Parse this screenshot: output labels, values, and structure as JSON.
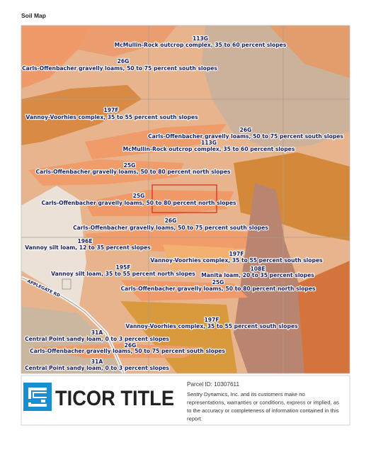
{
  "header": {
    "title": "Soil Map"
  },
  "map": {
    "labels": [
      {
        "code": "113G",
        "name": "McMullin-Rock outcrop complex, 35 to 60 percent slopes"
      },
      {
        "code": "26G",
        "name": "Carls-Offenbacher gravelly loams, 50 to 75 percent south slopes"
      },
      {
        "code": "197F",
        "name": "Vannoy-Voorhies complex, 35 to 55 percent south slopes"
      },
      {
        "code": "26G",
        "name": "Carls-Offenbacher gravelly loams, 50 to 75 percent south slopes"
      },
      {
        "code": "113G",
        "name": "McMullin-Rock outcrop complex, 35 to 60 percent slopes"
      },
      {
        "code": "25G",
        "name": "Carls-Offenbacher gravelly loams, 50 to 80 percent north slopes"
      },
      {
        "code": "25G",
        "name": "Carls-Offenbacher gravelly loams, 50 to 80 percent north slopes"
      },
      {
        "code": "26G",
        "name": "Carls-Offenbacher gravelly loams, 50 to 75 percent south slopes"
      },
      {
        "code": "196E",
        "name": "Vannoy silt loam, 12 to 35 percent slopes"
      },
      {
        "code": "197F",
        "name": "Vannoy-Voorhies complex, 35 to 55 percent south slopes"
      },
      {
        "code": "195F",
        "name": "Vannoy silt loam, 35 to 55 percent north slopes"
      },
      {
        "code": "108E",
        "name": "Manita loam, 20 to 35 percent slopes"
      },
      {
        "code": "25G",
        "name": "Carls-Offenbacher gravelly loams, 50 to 80 percent north slopes"
      },
      {
        "code": "197F",
        "name": "Vannoy-Voorhies complex, 35 to 55 percent south slopes"
      },
      {
        "code": "31A",
        "name": "Central Point sandy loam, 0 to 3 percent slopes"
      },
      {
        "code": "26G",
        "name": "Carls-Offenbacher gravelly loams, 50 to 75 percent south slopes"
      },
      {
        "code": "31A",
        "name": "Central Point sandy loam, 0 to 3 percent slopes"
      }
    ],
    "road_label": "APPLEGATE RD"
  },
  "footer": {
    "brand": "TICOR TITLE",
    "parcel_id": "Parcel ID: 10307611",
    "disclaimer": [
      "Sentry Dynamics, Inc. and its customers make no",
      "representations, warranties or conditions, express or implied, as",
      "to the accuracy or completeness of information contained in this",
      "report."
    ]
  }
}
